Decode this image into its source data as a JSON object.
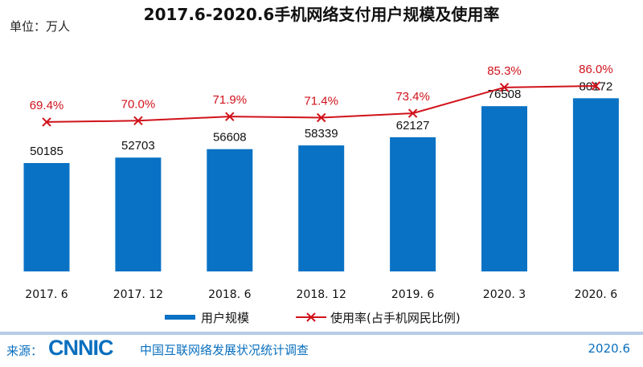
{
  "chart_data": {
    "type": "bar+line",
    "title": "2017.6-2020.6手机网络支付用户规模及使用率",
    "unit_label": "单位：万人",
    "categories": [
      "2017. 6",
      "2017. 12",
      "2018. 6",
      "2018. 12",
      "2019. 6",
      "2020. 3",
      "2020. 6"
    ],
    "series": [
      {
        "name": "用户规模",
        "type": "bar",
        "values": [
          50185,
          52703,
          56608,
          58339,
          62127,
          76508,
          80172
        ],
        "color": "#0a72c4"
      },
      {
        "name": "使用率(占手机网民比例",
        "type": "line",
        "values": [
          69.4,
          70.0,
          71.9,
          71.4,
          73.4,
          85.3,
          86.0
        ],
        "labels": [
          "69.4%",
          "70.0%",
          "71.9%",
          "71.4%",
          "73.4%",
          "85.3%",
          "86.0%"
        ],
        "color": "#d0121b"
      }
    ],
    "legend_position": "bottom",
    "grid": false
  },
  "footer": {
    "source_label": "来源：",
    "logo": "CNNIC",
    "source_name": "中国互联网络发展状况统计调查",
    "date": "2020.6"
  }
}
